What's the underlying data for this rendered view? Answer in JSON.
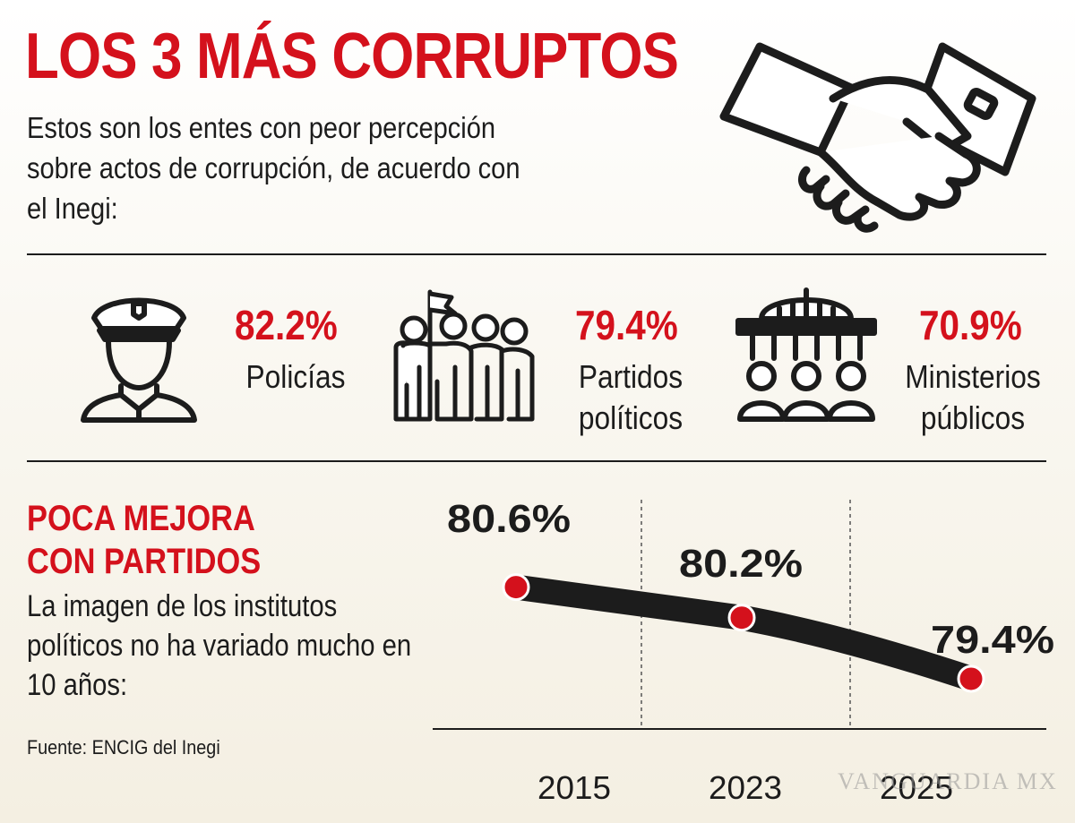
{
  "header": {
    "title": "LOS 3 MÁS CORRUPTOS",
    "intro": "Estos son los entes con peor percepción sobre actos de corrupción, de acuerdo con el Inegi:"
  },
  "stats": [
    {
      "icon": "police-officer-icon",
      "percent": "82.2%",
      "label_lines": [
        "Policías"
      ]
    },
    {
      "icon": "political-group-flag-icon",
      "percent": "79.4%",
      "label_lines": [
        "Partidos",
        "políticos"
      ]
    },
    {
      "icon": "ministry-building-people-icon",
      "percent": "70.9%",
      "label_lines": [
        "Ministerios",
        "públicos"
      ]
    }
  ],
  "section": {
    "title_lines": [
      "POCA MEJORA",
      "CON PARTIDOS"
    ],
    "description": "La imagen de los institutos políticos no ha variado mucho en 10 años:",
    "source": "Fuente: ENCIG del Inegi"
  },
  "chart_data": {
    "type": "line",
    "categories": [
      "2015",
      "2023",
      "2025"
    ],
    "values": [
      80.6,
      80.2,
      79.4
    ],
    "value_labels": [
      "80.6%",
      "80.2%",
      "79.4%"
    ],
    "ylim": [
      79.2,
      80.9
    ],
    "grid": "vertical dashed separators",
    "colors": {
      "line": "#1c1c1c",
      "marker": "#d4111c",
      "marker_outline": "#ffffff",
      "label": "#1c1c1c"
    }
  },
  "watermark": "VANGUARDIA MX",
  "colors": {
    "accent": "#d4111c",
    "text": "#1c1c1c"
  }
}
